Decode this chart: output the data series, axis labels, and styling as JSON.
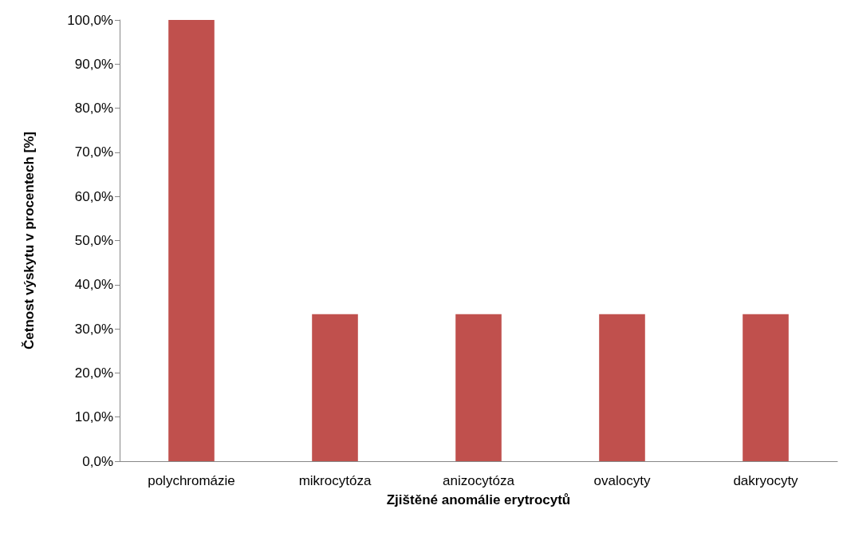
{
  "chart_data": {
    "type": "bar",
    "xlabel": "Zjištěné anomálie erytrocytů",
    "ylabel": "Četnost výskytu v procentech [%]",
    "categories": [
      "polychromázie",
      "mikrocytóza",
      "anizocytóza",
      "ovalocyty",
      "dakryocyty"
    ],
    "values": [
      100,
      33.3,
      33.3,
      33.3,
      33.3
    ],
    "color": "#c0504d",
    "ylim": [
      0,
      100
    ],
    "yticks": [
      {
        "value": 0,
        "label": "0,0%"
      },
      {
        "value": 10,
        "label": "10,0%"
      },
      {
        "value": 20,
        "label": "20,0%"
      },
      {
        "value": 30,
        "label": "30,0%"
      },
      {
        "value": 40,
        "label": "40,0%"
      },
      {
        "value": 50,
        "label": "50,0%"
      },
      {
        "value": 60,
        "label": "60,0%"
      },
      {
        "value": 70,
        "label": "70,0%"
      },
      {
        "value": 80,
        "label": "80,0%"
      },
      {
        "value": 90,
        "label": "90,0%"
      },
      {
        "value": 100,
        "label": "100,0%"
      }
    ],
    "grid": false
  }
}
